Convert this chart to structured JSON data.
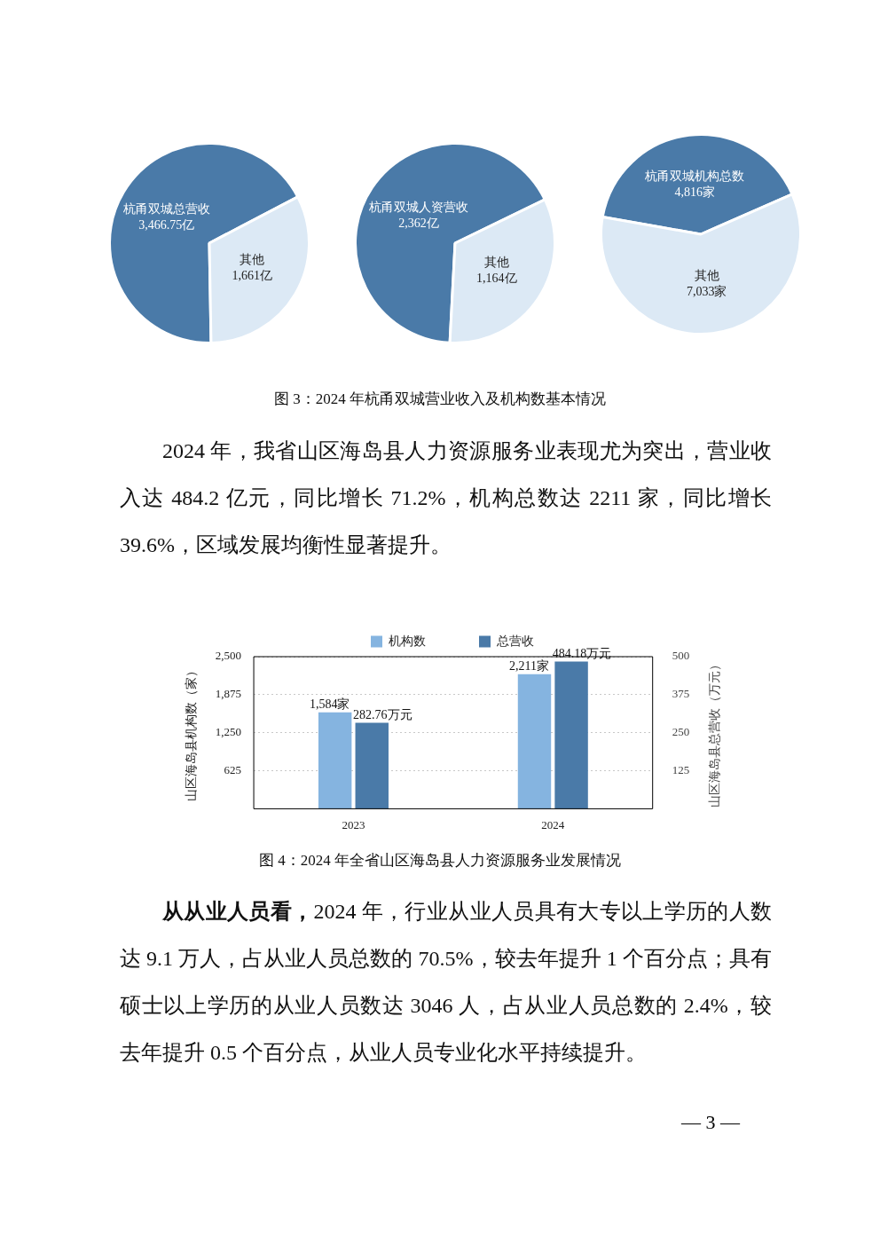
{
  "chart_data": [
    {
      "type": "pie",
      "categories": [
        "杭甬双城总营收",
        "其他"
      ],
      "values": [
        3466.75,
        1661
      ],
      "colors": [
        "#4a7aa8",
        "#dce9f5"
      ],
      "value_labels": [
        "3,466.75亿",
        "1,661亿"
      ],
      "annotations": [
        "图 3：2024 年杭甬双城营业收入及机构数基本情况",
        "2024 年，我省山区海岛县人力资源服务业表现尤为突出，营业收入达 484.2 亿元，同比增长 71.2%，机构总数达 2211 家，同比增长 39.6%，区域发展均衡性显著提升。"
      ]
    },
    {
      "type": "pie",
      "categories": [
        "杭甬双城人资营收",
        "其他"
      ],
      "values": [
        2362,
        1164
      ],
      "colors": [
        "#4a7aa8",
        "#dce9f5"
      ],
      "value_labels": [
        "2,362亿",
        "1,164亿"
      ]
    },
    {
      "type": "pie",
      "categories": [
        "杭甬双城机构总数",
        "其他"
      ],
      "values": [
        4816,
        7033
      ],
      "colors": [
        "#4a7aa8",
        "#dce9f5"
      ],
      "value_labels": [
        "4,816家",
        "7,033家"
      ]
    },
    {
      "type": "bar",
      "categories": [
        "2023",
        "2024"
      ],
      "series": [
        {
          "name": "机构数",
          "color": "#85b4e0",
          "values": [
            1584,
            2211
          ],
          "value_labels": [
            "1,584家",
            "2,211家"
          ]
        },
        {
          "name": "总营收",
          "color": "#4a7aa8",
          "values": [
            282.76,
            484.18
          ],
          "axis": "y2",
          "value_labels": [
            "282.76万元",
            "484.18万元"
          ]
        }
      ],
      "ylabel": "山区海岛县机构数（家）",
      "y2label": "山区海岛县总营收（万元）",
      "ylim": [
        0,
        2500
      ],
      "yticks": [
        {
          "value": 625,
          "label": "625"
        },
        {
          "value": 1250,
          "label": "1,250"
        },
        {
          "value": 1875,
          "label": "1,875"
        },
        {
          "value": 2500,
          "label": "2,500"
        }
      ],
      "y2lim": [
        0,
        500
      ],
      "y2ticks": [
        125,
        250,
        375,
        500
      ],
      "grid": "y",
      "legend": "top",
      "annotations": [
        "图 4：2024 年全省山区海岛县人力资源服务业发展情况",
        "从从业人员看，",
        "2024 年，行业从业人员具有大专以上学历的人数达 9.1 万人，占从业人员总数的 70.5%，较去年提升 1 个百分点；具有硕士以上学历的从业人员数达 3046 人，占从业人员总数的 2.4%，较去年提升 0.5 个百分点，从业人员专业化水平持续提升。",
        "— 3 —"
      ]
    }
  ]
}
